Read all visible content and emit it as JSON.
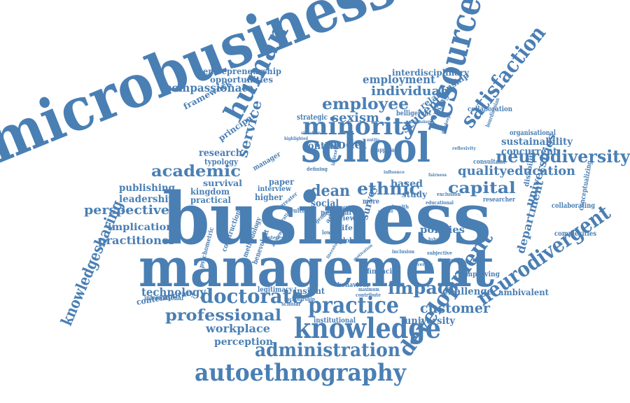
{
  "palette": {
    "word_color": "#4a7fb4",
    "background": "#ffffff"
  },
  "words": [
    "microbusinesses",
    "business",
    "management",
    "school",
    "resource",
    "knowledge",
    "practice",
    "autoethnography",
    "minority",
    "human",
    "doctorate",
    "satisfaction",
    "neurodiversity",
    "neurodivergent",
    "development",
    "administration",
    "academic",
    "capital",
    "ethnic",
    "dean",
    "employee",
    "impact",
    "professional",
    "knowledgesharing",
    "customer",
    "education",
    "quality",
    "perspective",
    "individual",
    "employment",
    "compassionate",
    "service",
    "universities",
    "department",
    "sustainability",
    "concurrent",
    "implication",
    "practitioner",
    "technology",
    "workplace",
    "perception",
    "model",
    "context",
    "sexism",
    "student",
    "research",
    "publishing",
    "leadership",
    "entrepreneurship",
    "opportunities",
    "interdisciplinary",
    "relationship",
    "framework",
    "principal",
    "typology",
    "survival",
    "kingdom",
    "practical",
    "policies",
    "university",
    "survey",
    "challenge",
    "ambivalent",
    "collaboration",
    "organisational",
    "collaborating",
    "complexities",
    "conceptualizing",
    "disability",
    "researcher",
    "consultant",
    "working",
    "strategic",
    "belligerent",
    "social",
    "paper",
    "higher",
    "based",
    "study",
    "personal",
    "interview",
    "manager",
    "institutional",
    "insight",
    "contemporary",
    "international",
    "legitimacy",
    "improving",
    "financial",
    "behaviour",
    "view",
    "life",
    "role",
    "culture",
    "global",
    "benevolent",
    "methodology",
    "construction",
    "psychometric",
    "more",
    "approach",
    "educational",
    "bourdieusian",
    "important",
    "exclusion",
    "subjective",
    "inclusion",
    "scholarship",
    "maximum",
    "contribute",
    "autism",
    "adhd",
    "value",
    "interest",
    "defining",
    "indexed",
    "highlighted",
    "situation",
    "gender",
    "potential",
    "mental",
    "policymaker",
    "entity",
    "lower",
    "scholar",
    "greater",
    "health",
    "influence",
    "hybrid",
    "awareness",
    "motivation",
    "literature",
    "gatekeeper",
    "reflexivity",
    "diversity",
    "fairness",
    "worker",
    "narrative"
  ]
}
